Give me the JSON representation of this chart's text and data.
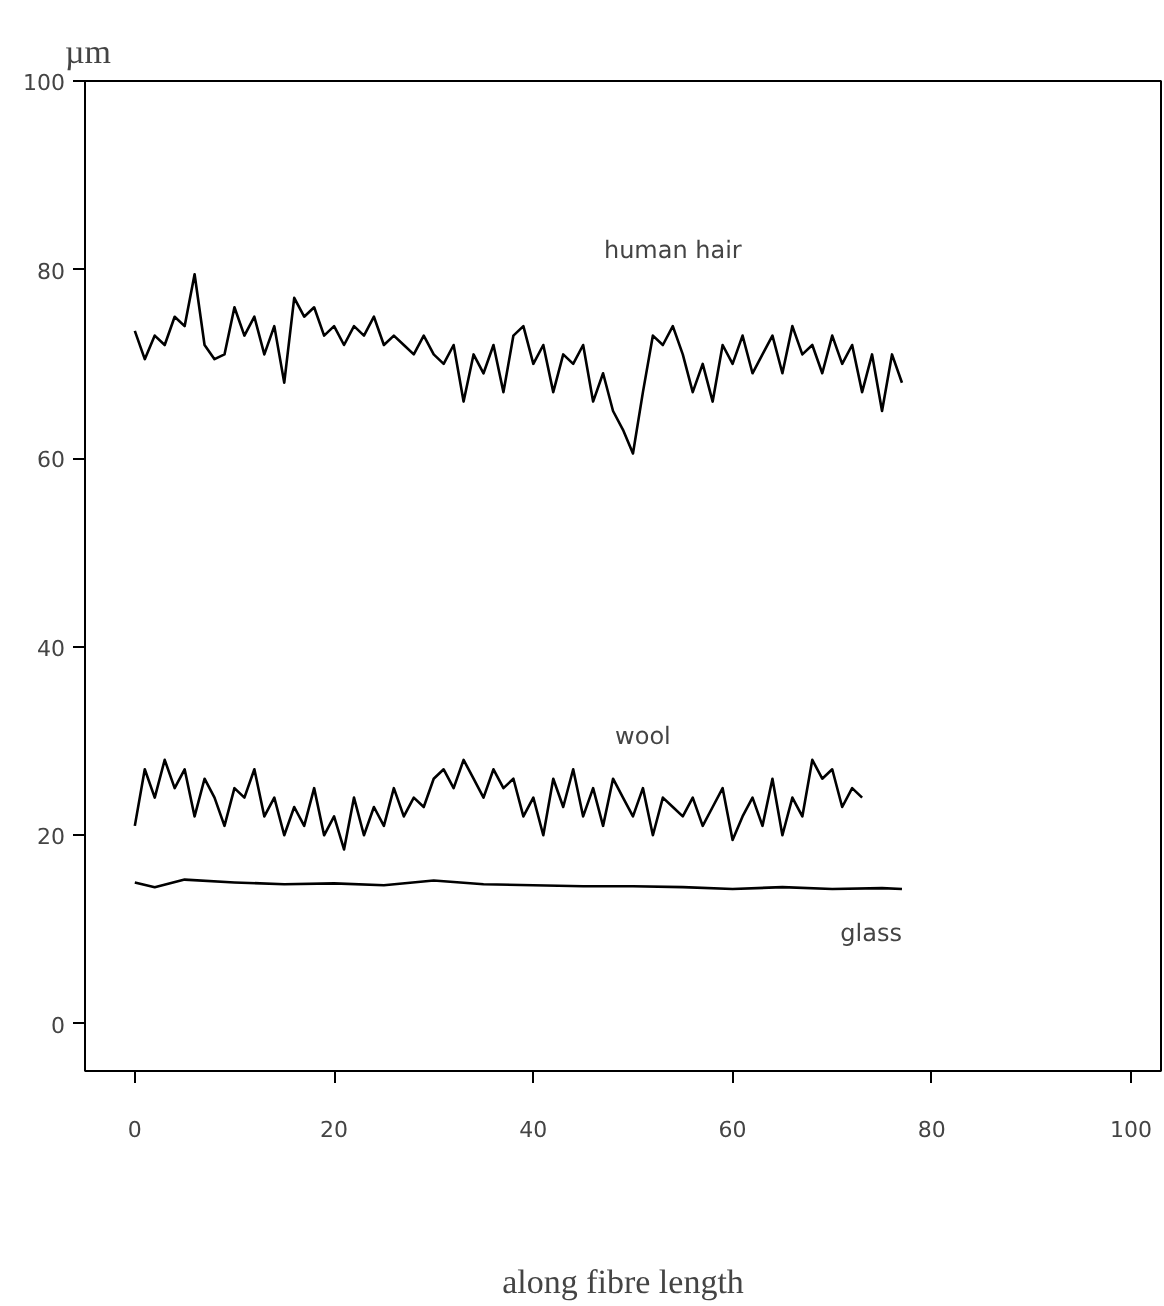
{
  "chart_data": {
    "type": "line",
    "ylabel": "µm",
    "xlabel": "along fibre length",
    "xlim": [
      -5,
      103
    ],
    "ylim": [
      -5,
      100
    ],
    "xticks": [
      0,
      20,
      40,
      60,
      80,
      100
    ],
    "yticks": [
      0,
      20,
      40,
      60,
      80,
      100
    ],
    "grid": false,
    "marker": "none",
    "line_style": "solid",
    "series": [
      {
        "name": "human hair",
        "color": "#000000",
        "x": [
          0,
          1,
          2,
          3,
          4,
          5,
          6,
          7,
          8,
          9,
          10,
          11,
          12,
          13,
          14,
          15,
          16,
          17,
          18,
          19,
          20,
          21,
          22,
          23,
          24,
          25,
          26,
          27,
          28,
          29,
          30,
          31,
          32,
          33,
          34,
          35,
          36,
          37,
          38,
          39,
          40,
          41,
          42,
          43,
          44,
          45,
          46,
          47,
          48,
          49,
          50,
          51,
          52,
          53,
          54,
          55,
          56,
          57,
          58,
          59,
          60,
          61,
          62,
          63,
          64,
          65,
          66,
          67,
          68,
          69,
          70,
          71,
          72,
          73,
          74,
          75,
          76,
          77
        ],
        "values": [
          73.5,
          70.5,
          73,
          72,
          75,
          74,
          79.5,
          72,
          70.5,
          71,
          76,
          73,
          75,
          71,
          74,
          68,
          77,
          75,
          76,
          73,
          74,
          72,
          74,
          73,
          75,
          72,
          73,
          72,
          71,
          73,
          71,
          70,
          72,
          66,
          71,
          69,
          72,
          67,
          73,
          74,
          70,
          72,
          67,
          71,
          70,
          72,
          66,
          69,
          65,
          63,
          60.5,
          67,
          73,
          72,
          74,
          71,
          67,
          70,
          66,
          72,
          70,
          73,
          69,
          71,
          73,
          69,
          74,
          71,
          72,
          69,
          73,
          70,
          72,
          67,
          71,
          65,
          71,
          68
        ]
      },
      {
        "name": "wool",
        "color": "#000000",
        "x": [
          0,
          1,
          2,
          3,
          4,
          5,
          6,
          7,
          8,
          9,
          10,
          11,
          12,
          13,
          14,
          15,
          16,
          17,
          18,
          19,
          20,
          21,
          22,
          23,
          24,
          25,
          26,
          27,
          28,
          29,
          30,
          31,
          32,
          33,
          34,
          35,
          36,
          37,
          38,
          39,
          40,
          41,
          42,
          43,
          44,
          45,
          46,
          47,
          48,
          49,
          50,
          51,
          52,
          53,
          54,
          55,
          56,
          57,
          58,
          59,
          60,
          61,
          62,
          63,
          64,
          65,
          66,
          67,
          68,
          69,
          70,
          71,
          72,
          73
        ],
        "values": [
          21,
          27,
          24,
          28,
          25,
          27,
          22,
          26,
          24,
          21,
          25,
          24,
          27,
          22,
          24,
          20,
          23,
          21,
          25,
          20,
          22,
          18.5,
          24,
          20,
          23,
          21,
          25,
          22,
          24,
          23,
          26,
          27,
          25,
          28,
          26,
          24,
          27,
          25,
          26,
          22,
          24,
          20,
          26,
          23,
          27,
          22,
          25,
          21,
          26,
          24,
          22,
          25,
          20,
          24,
          23,
          22,
          24,
          21,
          23,
          25,
          19.5,
          22,
          24,
          21,
          26,
          20,
          24,
          22,
          28,
          26,
          27,
          23,
          25,
          24
        ]
      },
      {
        "name": "glass",
        "color": "#000000",
        "x": [
          0,
          2,
          5,
          10,
          15,
          20,
          25,
          30,
          35,
          40,
          45,
          50,
          55,
          60,
          65,
          70,
          75,
          77
        ],
        "values": [
          15,
          14.5,
          15.3,
          15,
          14.8,
          14.9,
          14.7,
          15.2,
          14.8,
          14.7,
          14.6,
          14.6,
          14.5,
          14.3,
          14.5,
          14.3,
          14.4,
          14.3
        ]
      }
    ]
  }
}
